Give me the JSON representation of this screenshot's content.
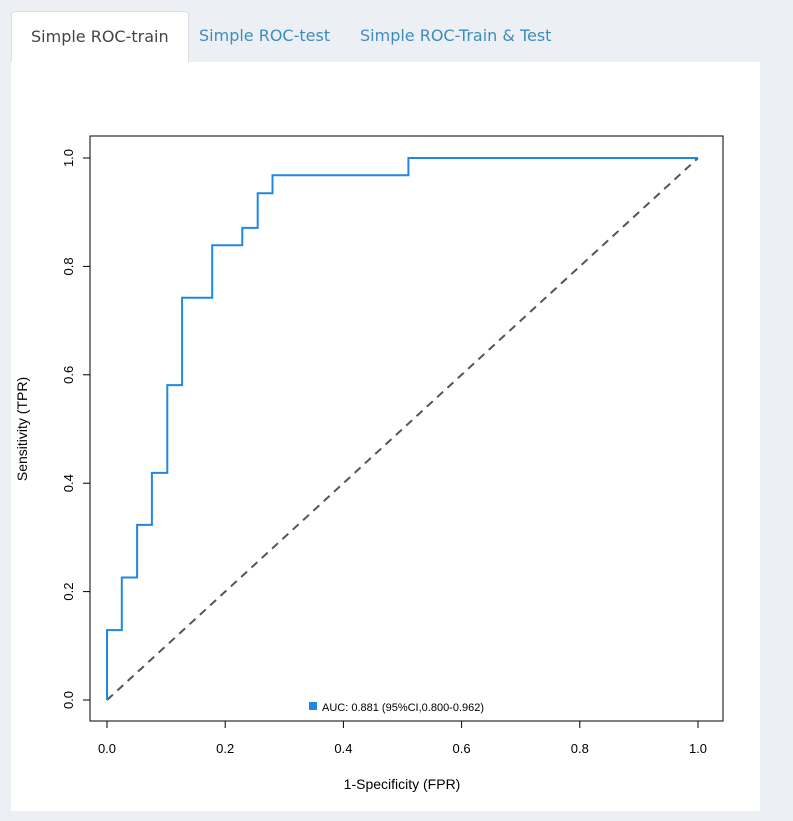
{
  "tabs": [
    {
      "label": "Simple ROC-train",
      "active": true
    },
    {
      "label": "Simple ROC-test",
      "active": false
    },
    {
      "label": "Simple ROC-Train & Test",
      "active": false
    }
  ],
  "colors": {
    "roc": "#1e88e5",
    "diagonal": "#555555",
    "legend_swatch": "#1e88e5",
    "axis": "#000000",
    "tab_link": "#3c8dbc"
  },
  "chart_data": {
    "type": "line",
    "xlabel": "1-Specificity (FPR)",
    "ylabel": "Sensitivity (TPR)",
    "xlim": [
      0,
      1
    ],
    "ylim": [
      0,
      1
    ],
    "xticks": [
      "0.0",
      "0.2",
      "0.4",
      "0.6",
      "0.8",
      "1.0"
    ],
    "yticks": [
      "0.0",
      "0.2",
      "0.4",
      "0.6",
      "0.8",
      "1.0"
    ],
    "legend": {
      "label": "AUC: 0.881 (95%CI,0.800-0.962)",
      "position": "bottom-center"
    },
    "series": [
      {
        "name": "ROC",
        "style": "step",
        "x": [
          0,
          0,
          0.025,
          0.025,
          0.051,
          0.051,
          0.076,
          0.076,
          0.102,
          0.102,
          0.127,
          0.127,
          0.178,
          0.178,
          0.229,
          0.229,
          0.255,
          0.255,
          0.28,
          0.28,
          0.51,
          0.51,
          1.0
        ],
        "y": [
          0,
          0.129,
          0.129,
          0.226,
          0.226,
          0.323,
          0.323,
          0.419,
          0.419,
          0.581,
          0.581,
          0.742,
          0.742,
          0.839,
          0.839,
          0.871,
          0.871,
          0.935,
          0.935,
          0.968,
          0.968,
          1.0,
          1.0
        ]
      },
      {
        "name": "Reference",
        "style": "dashed",
        "x": [
          0,
          1
        ],
        "y": [
          0,
          1
        ]
      }
    ]
  }
}
